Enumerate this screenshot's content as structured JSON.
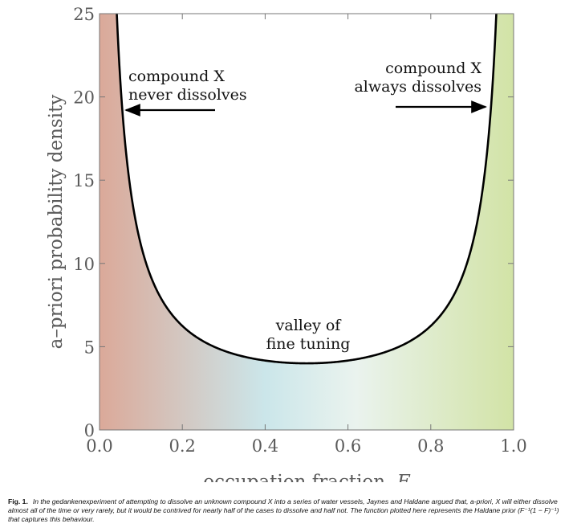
{
  "chart_data": {
    "type": "line",
    "title": "",
    "xlabel": "occupation fraction, ",
    "xlabel_symbol": "F",
    "ylabel": "a–priori probability density",
    "xlim": [
      0.0,
      1.0
    ],
    "ylim": [
      0,
      25
    ],
    "xticks": [
      "0.0",
      "0.2",
      "0.4",
      "0.6",
      "0.8",
      "1.0"
    ],
    "yticks": [
      "0",
      "5",
      "10",
      "15",
      "20",
      "25"
    ],
    "grid": false,
    "background_gradient": {
      "left": "#dba999",
      "middle": "#cbe6ea",
      "right": "#d2e3a6"
    },
    "line_color": "#000000",
    "series": [
      {
        "function": "1/(F(1-F))",
        "x": [
          0.04,
          0.05,
          0.06,
          0.08,
          0.1,
          0.15,
          0.2,
          0.25,
          0.3,
          0.35,
          0.4,
          0.45,
          0.5,
          0.55,
          0.6,
          0.65,
          0.7,
          0.75,
          0.8,
          0.85,
          0.9,
          0.92,
          0.94,
          0.95,
          0.96
        ],
        "y": [
          26.04,
          21.05,
          17.73,
          13.59,
          11.11,
          7.84,
          6.25,
          5.33,
          4.76,
          4.4,
          4.17,
          4.04,
          4.0,
          4.04,
          4.17,
          4.4,
          4.76,
          5.33,
          6.25,
          7.84,
          11.11,
          13.59,
          17.73,
          21.05,
          26.04
        ]
      }
    ],
    "annotations": [
      {
        "lines": [
          "compound X",
          "never dissolves"
        ],
        "arrow": "left"
      },
      {
        "lines": [
          "compound X",
          "always dissolves"
        ],
        "arrow": "right"
      },
      {
        "lines": [
          "valley of",
          "fine tuning"
        ],
        "arrow": "none"
      }
    ]
  },
  "caption": {
    "label": "Fig. 1.",
    "text_before": "In the gedankenexperiment of attempting to dissolve an unknown compound X into a series of water vessels, Jaynes and Haldane argued that, a-priori, X will either dissolve almost all of the time or very rarely, but it would be contrived for nearly half of the cases to dissolve and half not. The function plotted here represents the Haldane prior ",
    "formula": "(F⁻¹(1 − F)⁻¹)",
    "text_after": " that captures this behaviour."
  }
}
